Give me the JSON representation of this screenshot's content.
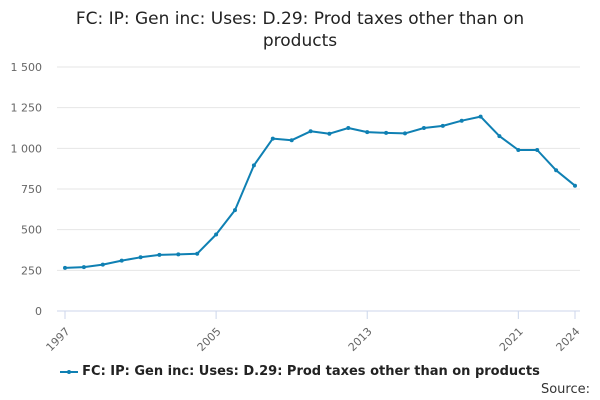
{
  "title_line1": "FC: IP: Gen inc: Uses: D.29: Prod taxes other than on",
  "title_line2": "products",
  "source_label": "Source:",
  "colors": {
    "series": "#0f80b3",
    "grid": "#e6e6e6",
    "axis": "#ccd6eb",
    "text": "#666666"
  },
  "chart_data": {
    "type": "line",
    "title": "FC: IP: Gen inc: Uses: D.29: Prod taxes other than on products",
    "xlabel": "",
    "ylabel": "",
    "ylim": [
      0,
      1500
    ],
    "yticks": [
      0,
      250,
      500,
      750,
      1000,
      1250,
      1500
    ],
    "ytick_labels": [
      "0",
      "250",
      "500",
      "750",
      "1 000",
      "1 250",
      "1 500"
    ],
    "xlim": [
      1997,
      2024
    ],
    "xticks": [
      1997,
      2005,
      2013,
      2021,
      2024
    ],
    "xtick_labels": [
      "1997",
      "2005",
      "2013",
      "2021",
      "2024"
    ],
    "grid": true,
    "legend_position": "bottom",
    "x": [
      1997,
      1998,
      1999,
      2000,
      2001,
      2002,
      2003,
      2004,
      2005,
      2006,
      2007,
      2008,
      2009,
      2010,
      2011,
      2012,
      2013,
      2014,
      2015,
      2016,
      2017,
      2018,
      2019,
      2020,
      2021,
      2022,
      2023,
      2024
    ],
    "series": [
      {
        "name": "FC: IP: Gen inc: Uses: D.29: Prod taxes other than on products",
        "values": [
          265,
          270,
          285,
          310,
          330,
          345,
          348,
          352,
          470,
          620,
          895,
          1060,
          1050,
          1105,
          1090,
          1125,
          1100,
          1095,
          1092,
          1125,
          1138,
          1170,
          1195,
          1075,
          990,
          990,
          865,
          770
        ]
      }
    ]
  }
}
